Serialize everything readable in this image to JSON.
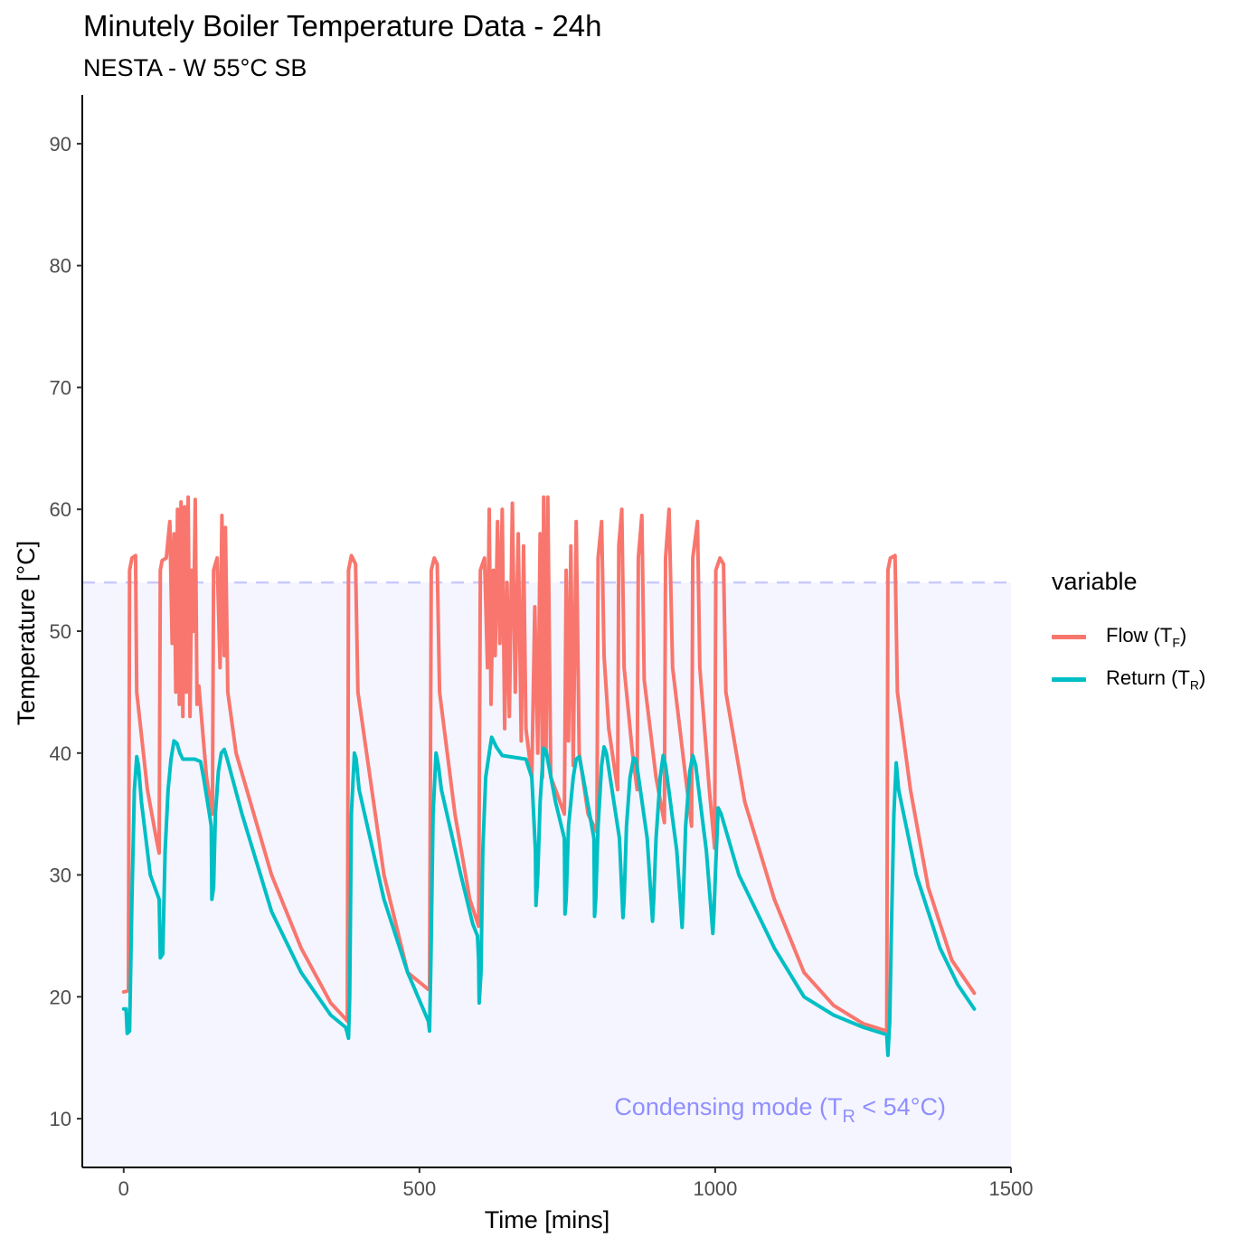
{
  "title": "Minutely Boiler Temperature Data - 24h",
  "subtitle": "NESTA - W 55°C SB",
  "chart_data": {
    "type": "line",
    "xlabel": "Time [mins]",
    "ylabel": "Temperature [°C]",
    "xlim": [
      -70,
      1500
    ],
    "ylim": [
      6,
      94
    ],
    "xticks": [
      0,
      500,
      1000,
      1500
    ],
    "yticks": [
      10,
      20,
      30,
      40,
      50,
      60,
      70,
      80,
      90
    ],
    "grid": false,
    "legend_position": "right",
    "legend_title": "variable",
    "threshold": {
      "y": 54,
      "style": "dashed",
      "color": "#8F8FFF"
    },
    "condensing_region": {
      "ymax": 54,
      "label_main": "Condensing mode (T",
      "label_sub": "R",
      "label_end": " < 54°C)",
      "color": "#8F8FFF"
    },
    "series": [
      {
        "name": "Flow (T",
        "name_sub": "F",
        "color": "#F8766D",
        "points": [
          [
            0,
            20.4
          ],
          [
            8,
            20.5
          ],
          [
            10,
            55
          ],
          [
            14,
            56
          ],
          [
            20,
            56.2
          ],
          [
            22,
            45
          ],
          [
            40,
            37
          ],
          [
            55,
            33
          ],
          [
            60,
            31.8
          ],
          [
            62,
            55
          ],
          [
            65,
            55.8
          ],
          [
            72,
            56
          ],
          [
            78,
            59
          ],
          [
            82,
            49
          ],
          [
            85,
            58
          ],
          [
            88,
            45
          ],
          [
            91,
            60
          ],
          [
            94,
            44
          ],
          [
            97,
            60.6
          ],
          [
            100,
            43
          ],
          [
            103,
            60.2
          ],
          [
            106,
            45
          ],
          [
            109,
            61
          ],
          [
            112,
            43
          ],
          [
            115,
            55
          ],
          [
            118,
            50
          ],
          [
            121,
            60.8
          ],
          [
            124,
            44
          ],
          [
            127,
            45.5
          ],
          [
            140,
            38
          ],
          [
            150,
            35
          ],
          [
            152,
            55
          ],
          [
            158,
            56
          ],
          [
            163,
            47
          ],
          [
            166,
            59.5
          ],
          [
            170,
            48
          ],
          [
            172,
            58.5
          ],
          [
            176,
            45
          ],
          [
            190,
            40
          ],
          [
            250,
            30
          ],
          [
            300,
            24
          ],
          [
            350,
            19.5
          ],
          [
            375,
            18.2
          ],
          [
            378,
            18
          ],
          [
            380,
            55
          ],
          [
            385,
            56.2
          ],
          [
            392,
            55.5
          ],
          [
            396,
            45
          ],
          [
            440,
            30
          ],
          [
            480,
            22
          ],
          [
            515,
            20.6
          ],
          [
            517,
            20.7
          ],
          [
            520,
            55
          ],
          [
            525,
            56
          ],
          [
            530,
            55.5
          ],
          [
            534,
            45
          ],
          [
            560,
            35
          ],
          [
            585,
            28
          ],
          [
            600,
            25.8
          ],
          [
            603,
            55
          ],
          [
            610,
            56
          ],
          [
            615,
            47
          ],
          [
            618,
            60
          ],
          [
            621,
            44
          ],
          [
            625,
            55
          ],
          [
            628,
            48
          ],
          [
            632,
            59
          ],
          [
            636,
            49
          ],
          [
            640,
            60
          ],
          [
            644,
            42
          ],
          [
            648,
            54
          ],
          [
            652,
            43
          ],
          [
            657,
            60.5
          ],
          [
            662,
            45
          ],
          [
            667,
            58
          ],
          [
            672,
            41
          ],
          [
            676,
            57
          ],
          [
            680,
            42
          ],
          [
            685,
            40
          ],
          [
            690,
            38
          ],
          [
            695,
            52
          ],
          [
            700,
            40
          ],
          [
            704,
            58
          ],
          [
            708,
            38
          ],
          [
            710,
            61
          ],
          [
            714,
            40
          ],
          [
            717,
            61
          ],
          [
            722,
            38
          ],
          [
            730,
            37
          ],
          [
            745,
            35
          ],
          [
            748,
            55
          ],
          [
            752,
            41
          ],
          [
            756,
            57
          ],
          [
            760,
            39
          ],
          [
            765,
            59
          ],
          [
            770,
            40
          ],
          [
            785,
            35
          ],
          [
            800,
            33.5
          ],
          [
            802,
            56
          ],
          [
            808,
            59
          ],
          [
            812,
            48
          ],
          [
            820,
            42
          ],
          [
            835,
            37
          ],
          [
            837,
            57
          ],
          [
            842,
            60
          ],
          [
            846,
            47
          ],
          [
            860,
            40
          ],
          [
            868,
            37
          ],
          [
            870,
            56
          ],
          [
            876,
            59.5
          ],
          [
            880,
            46
          ],
          [
            900,
            38
          ],
          [
            914,
            34.3
          ],
          [
            916,
            56
          ],
          [
            922,
            60
          ],
          [
            928,
            47
          ],
          [
            950,
            38
          ],
          [
            960,
            34
          ],
          [
            962,
            56
          ],
          [
            970,
            59
          ],
          [
            974,
            47
          ],
          [
            990,
            37
          ],
          [
            999,
            32.2
          ],
          [
            1001,
            55
          ],
          [
            1008,
            56
          ],
          [
            1014,
            55.5
          ],
          [
            1018,
            45
          ],
          [
            1050,
            36
          ],
          [
            1100,
            28
          ],
          [
            1150,
            22
          ],
          [
            1200,
            19.3
          ],
          [
            1250,
            17.8
          ],
          [
            1290,
            17.2
          ],
          [
            1292,
            55
          ],
          [
            1296,
            56
          ],
          [
            1304,
            56.2
          ],
          [
            1308,
            45
          ],
          [
            1330,
            37
          ],
          [
            1360,
            29
          ],
          [
            1400,
            23
          ],
          [
            1438,
            20.3
          ]
        ]
      },
      {
        "name": "Return (T",
        "name_sub": "R",
        "color": "#00BFC4",
        "points": [
          [
            0,
            19
          ],
          [
            4,
            19
          ],
          [
            6,
            17
          ],
          [
            10,
            17.2
          ],
          [
            14,
            28
          ],
          [
            18,
            37
          ],
          [
            22,
            39.7
          ],
          [
            25,
            39
          ],
          [
            30,
            36
          ],
          [
            45,
            30
          ],
          [
            60,
            28
          ],
          [
            62,
            23.2
          ],
          [
            66,
            23.5
          ],
          [
            70,
            32
          ],
          [
            75,
            37
          ],
          [
            80,
            39.5
          ],
          [
            85,
            41
          ],
          [
            90,
            40.8
          ],
          [
            95,
            40
          ],
          [
            100,
            39.5
          ],
          [
            120,
            39.5
          ],
          [
            130,
            39.3
          ],
          [
            135,
            38
          ],
          [
            145,
            35
          ],
          [
            148,
            34
          ],
          [
            149,
            28
          ],
          [
            152,
            29
          ],
          [
            155,
            35
          ],
          [
            160,
            38.5
          ],
          [
            165,
            40
          ],
          [
            170,
            40.3
          ],
          [
            175,
            39.5
          ],
          [
            200,
            35
          ],
          [
            250,
            27
          ],
          [
            300,
            22
          ],
          [
            350,
            18.5
          ],
          [
            375,
            17.5
          ],
          [
            377,
            17.2
          ],
          [
            380,
            16.6
          ],
          [
            382,
            20
          ],
          [
            385,
            35
          ],
          [
            390,
            40
          ],
          [
            393,
            39.5
          ],
          [
            398,
            37
          ],
          [
            440,
            28
          ],
          [
            480,
            22
          ],
          [
            515,
            18
          ],
          [
            517,
            17.2
          ],
          [
            519,
            22
          ],
          [
            523,
            35
          ],
          [
            528,
            40
          ],
          [
            532,
            39
          ],
          [
            537,
            37
          ],
          [
            570,
            30
          ],
          [
            590,
            26
          ],
          [
            598,
            25
          ],
          [
            600,
            23
          ],
          [
            601,
            19.5
          ],
          [
            604,
            22
          ],
          [
            607,
            32
          ],
          [
            612,
            38
          ],
          [
            618,
            40
          ],
          [
            622,
            41.3
          ],
          [
            630,
            40.5
          ],
          [
            640,
            39.8
          ],
          [
            680,
            39.5
          ],
          [
            690,
            38
          ],
          [
            696,
            32
          ],
          [
            697,
            27.5
          ],
          [
            700,
            30
          ],
          [
            704,
            36
          ],
          [
            710,
            40.4
          ],
          [
            714,
            40.2
          ],
          [
            730,
            36
          ],
          [
            745,
            33
          ],
          [
            746,
            26.8
          ],
          [
            748,
            28
          ],
          [
            752,
            34
          ],
          [
            760,
            38
          ],
          [
            765,
            39.5
          ],
          [
            770,
            39.7
          ],
          [
            775,
            38.5
          ],
          [
            795,
            33
          ],
          [
            796,
            26.6
          ],
          [
            798,
            28
          ],
          [
            802,
            34
          ],
          [
            808,
            39
          ],
          [
            812,
            40.5
          ],
          [
            816,
            40
          ],
          [
            838,
            33
          ],
          [
            844,
            26.5
          ],
          [
            846,
            28
          ],
          [
            850,
            34
          ],
          [
            856,
            38
          ],
          [
            862,
            39.6
          ],
          [
            866,
            39.5
          ],
          [
            885,
            33
          ],
          [
            894,
            26.2
          ],
          [
            896,
            28
          ],
          [
            900,
            33
          ],
          [
            907,
            38
          ],
          [
            912,
            39.8
          ],
          [
            916,
            39
          ],
          [
            935,
            32
          ],
          [
            944,
            25.7
          ],
          [
            946,
            28
          ],
          [
            950,
            34
          ],
          [
            957,
            38.5
          ],
          [
            962,
            39.8
          ],
          [
            967,
            39
          ],
          [
            985,
            32
          ],
          [
            996,
            25.2
          ],
          [
            998,
            27
          ],
          [
            1001,
            31
          ],
          [
            1005,
            35.5
          ],
          [
            1010,
            35
          ],
          [
            1040,
            30
          ],
          [
            1100,
            24
          ],
          [
            1150,
            20
          ],
          [
            1200,
            18.5
          ],
          [
            1250,
            17.5
          ],
          [
            1290,
            16.9
          ],
          [
            1292,
            15.2
          ],
          [
            1295,
            18
          ],
          [
            1298,
            26
          ],
          [
            1302,
            35
          ],
          [
            1306,
            39.2
          ],
          [
            1310,
            37
          ],
          [
            1340,
            30
          ],
          [
            1380,
            24
          ],
          [
            1410,
            21
          ],
          [
            1438,
            19
          ]
        ]
      }
    ]
  }
}
